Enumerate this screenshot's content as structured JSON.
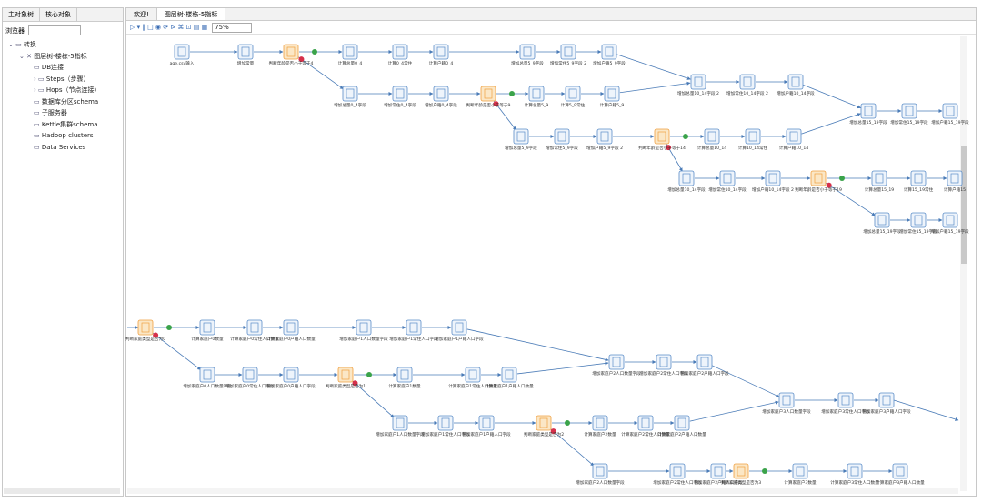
{
  "left_tabs": [
    "主对象树",
    "核心对象"
  ],
  "browser_label": "浏览器",
  "tree": [
    "转换",
    "图层树-楼栋-5指标",
    "DB连接",
    "Steps（步骤）",
    "Hops（节点连接）",
    "数据库分区schema",
    "子服务器",
    "Kettle集群schema",
    "Hadoop clusters",
    "Data Services"
  ],
  "editor_tabs": [
    "欢迎!",
    "图层树-楼栋-5指标"
  ],
  "zoom": "75%",
  "nodes": [
    {
      "label": "age.csv输入"
    },
    {
      "label": "增加常量"
    },
    {
      "label": "判断年龄是否小于等于4"
    },
    {
      "label": "计算总量0_4"
    },
    {
      "label": "计算0_4常住"
    },
    {
      "label": "计算户籍0_4"
    },
    {
      "label": "增加总量5_9字段"
    },
    {
      "label": "增加常住5_9字段 2"
    },
    {
      "label": "增加户籍5_9字段"
    },
    {
      "label": "增加总量0_4字段"
    },
    {
      "label": "增加常住0_4字段"
    },
    {
      "label": "增加户籍0_4字段"
    },
    {
      "label": "判断年龄是否小于等于9"
    },
    {
      "label": "计算总量5_9"
    },
    {
      "label": "计算5_9常住"
    },
    {
      "label": "计算户籍5_9"
    },
    {
      "label": "增加总量10_14字段 2"
    },
    {
      "label": "增加常住10_14字段 2"
    },
    {
      "label": "增加户籍10_14字段"
    },
    {
      "label": "增加总量5_9字段"
    },
    {
      "label": "增加常住5_9字段"
    },
    {
      "label": "增加户籍5_9字段 2"
    },
    {
      "label": "判断年龄是否小于等于14"
    },
    {
      "label": "计算总量10_14"
    },
    {
      "label": "计算10_14常住"
    },
    {
      "label": "计算户籍10_14"
    },
    {
      "label": "增加总量15_19字段"
    },
    {
      "label": "增加常住15_19字段"
    },
    {
      "label": "增加户籍15_19字段"
    },
    {
      "label": "增加总量10_14字段"
    },
    {
      "label": "增加常住10_14字段"
    },
    {
      "label": "增加户籍10_14字段 2"
    },
    {
      "label": "判断年龄是否小于等于19"
    },
    {
      "label": "计算总量15_19"
    },
    {
      "label": "计算15_19常住"
    },
    {
      "label": "计算户籍15"
    },
    {
      "label": "增加总量15_19字段"
    },
    {
      "label": "增加常住15_19字段"
    },
    {
      "label": "增加户籍15_19字段"
    },
    {
      "label": "判断家庭类型是否为0"
    },
    {
      "label": "计算家庭户0数量"
    },
    {
      "label": "计算家庭户0常住人口数量"
    },
    {
      "label": "计算家庭户0户籍人口数量"
    },
    {
      "label": "增加家庭户1人口数量字段"
    },
    {
      "label": "增加家庭户1常住人口字段"
    },
    {
      "label": "增加家庭户1户籍人口字段"
    },
    {
      "label": "增加家庭户0人口数量字段"
    },
    {
      "label": "增加家庭户0常住人口字段"
    },
    {
      "label": "增加家庭户0户籍人口字段"
    },
    {
      "label": "判断家庭类型是否为1"
    },
    {
      "label": "计算家庭户1数量"
    },
    {
      "label": "计算家庭户1常住人口数量"
    },
    {
      "label": "计算家庭户1户籍人口数量"
    },
    {
      "label": "增加家庭户2人口数量字段"
    },
    {
      "label": "增加家庭户2常住人口字段"
    },
    {
      "label": "增加家庭户2户籍人口字段"
    },
    {
      "label": "增加家庭户1人口数量字段"
    },
    {
      "label": "增加家庭户1常住人口字段"
    },
    {
      "label": "增加家庭户1户籍人口字段"
    },
    {
      "label": "判断家庭类型是否为2"
    },
    {
      "label": "计算家庭户2数量"
    },
    {
      "label": "计算家庭户2常住人口数量"
    },
    {
      "label": "计算家庭户2户籍人口数量"
    },
    {
      "label": "增加家庭户3人口数量字段"
    },
    {
      "label": "增加家庭户3常住人口字段"
    },
    {
      "label": "增加家庭户3户籍人口字段"
    },
    {
      "label": "增加家庭户2人口数量字段"
    },
    {
      "label": "增加家庭户2常住人口字段"
    },
    {
      "label": "增加家庭户2户籍人口字段"
    },
    {
      "label": "判断家庭类型是否为3"
    },
    {
      "label": "计算家庭户3数量"
    },
    {
      "label": "计算家庭户3常住人口数量"
    },
    {
      "label": "计算家庭户3户籍人口数量"
    }
  ]
}
